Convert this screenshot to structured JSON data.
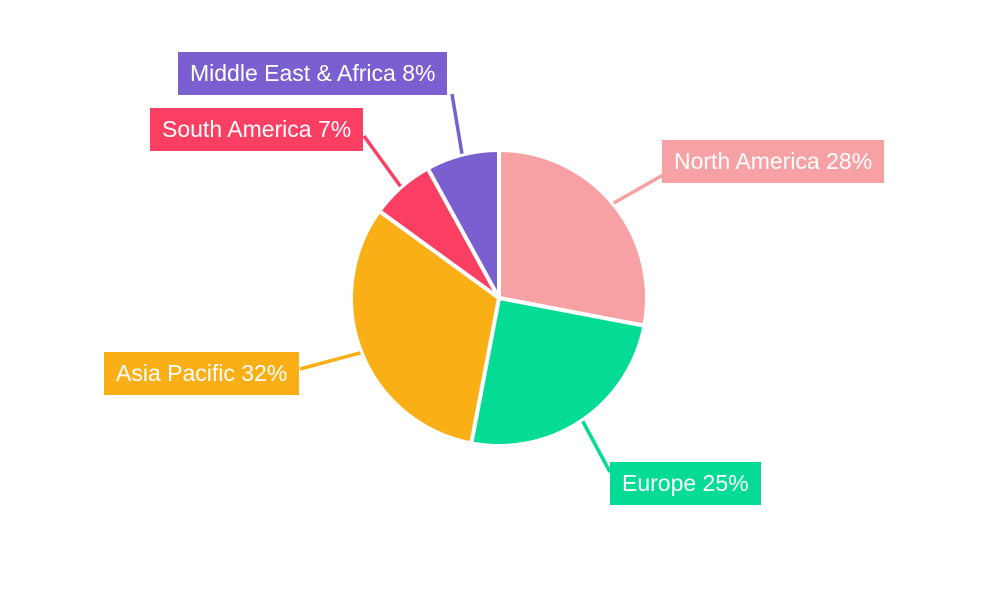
{
  "chart_data": {
    "type": "pie",
    "title": "",
    "categories": [
      "North America",
      "Europe",
      "Asia Pacific",
      "South America",
      "Middle East & Africa"
    ],
    "values": [
      28,
      25,
      32,
      7,
      8
    ],
    "unit": "%",
    "start_angle": "top",
    "direction": "clockwise",
    "background": "#FFFFFF",
    "slice_gap_color": "#FFFFFF",
    "legend_position": "outside-labels-with-leader-lines",
    "slices": [
      {
        "name": "North America",
        "value": 28,
        "display": "North America 28%",
        "color": "#F7A1A5"
      },
      {
        "name": "Europe",
        "value": 25,
        "display": "Europe 25%",
        "color": "#04DC96"
      },
      {
        "name": "Asia Pacific",
        "value": 32,
        "display": "Asia Pacific 32%",
        "color": "#FBAF17"
      },
      {
        "name": "South America",
        "value": 7,
        "display": "South America 7%",
        "color": "#FA3F63"
      },
      {
        "name": "Middle East & Africa",
        "value": 8,
        "display": "Middle East & Africa 8%",
        "color": "#7A5FD1"
      }
    ]
  }
}
